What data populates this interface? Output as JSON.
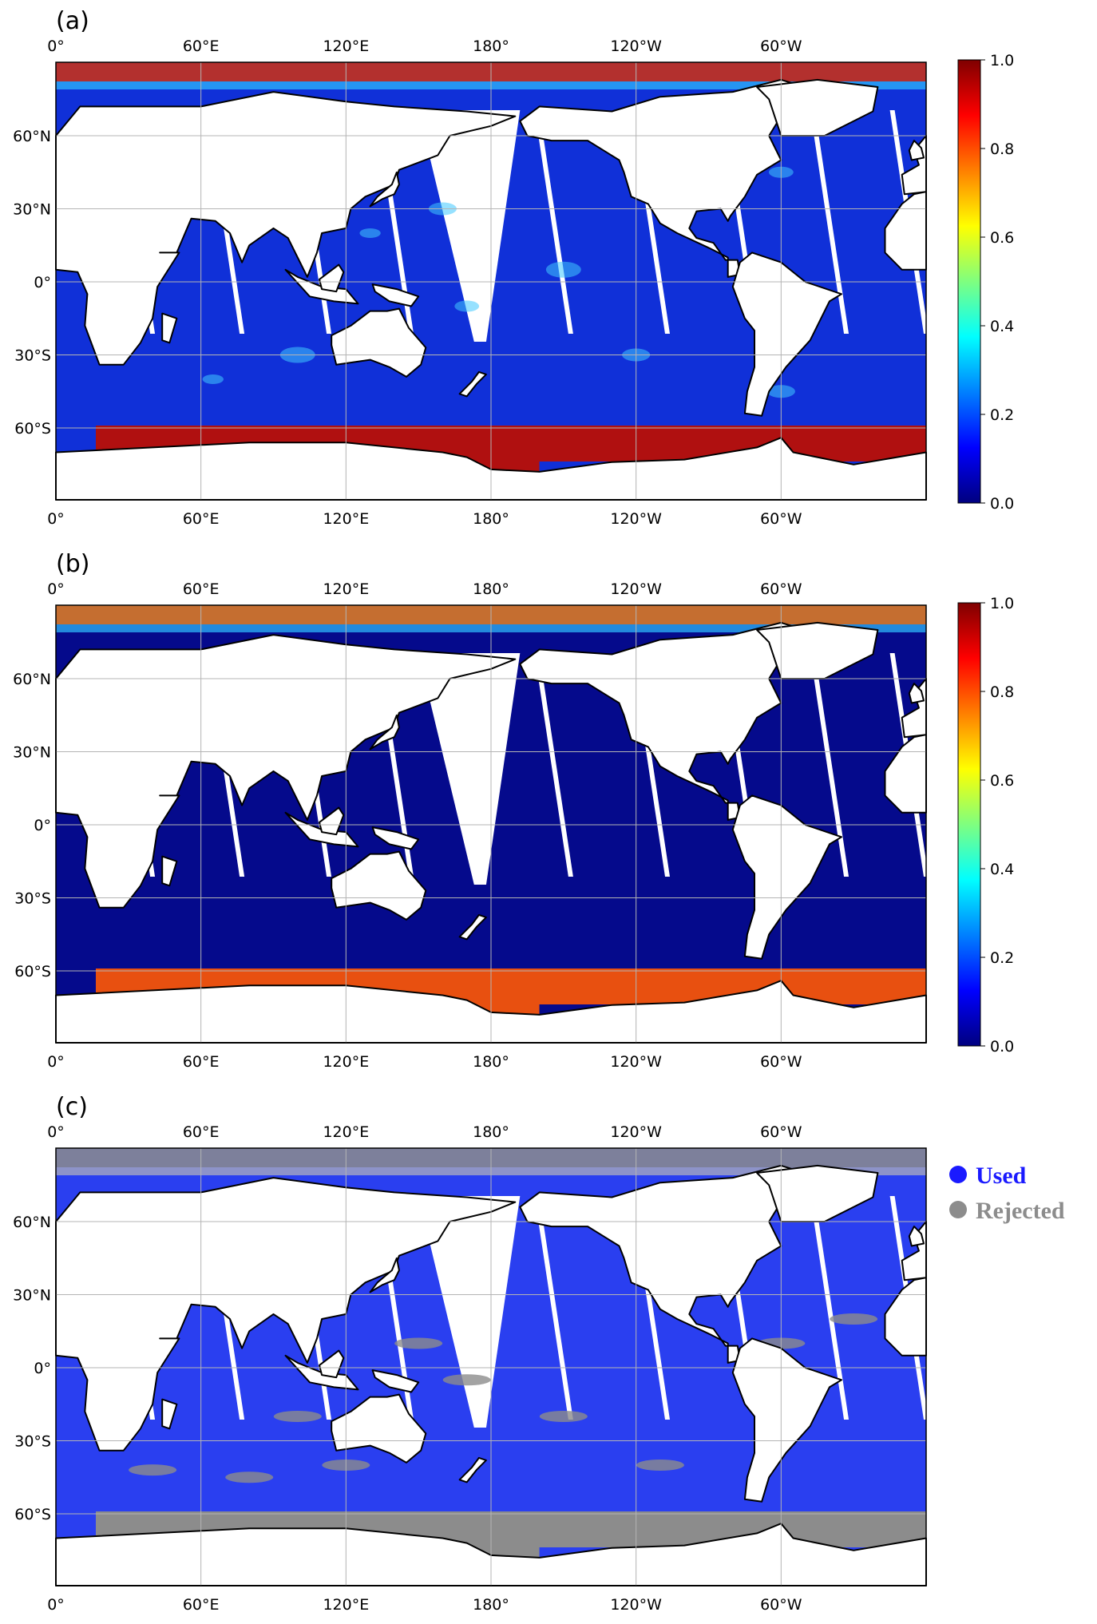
{
  "panels": [
    {
      "label": "(a)",
      "type": "colormap",
      "colorbar": {
        "ticks": [
          "1.0",
          "0.8",
          "0.6",
          "0.4",
          "0.2",
          "0.0"
        ]
      }
    },
    {
      "label": "(b)",
      "type": "colormap",
      "colorbar": {
        "ticks": [
          "1.0",
          "0.8",
          "0.6",
          "0.4",
          "0.2",
          "0.0"
        ]
      }
    },
    {
      "label": "(c)",
      "type": "categorical",
      "legend": [
        {
          "label": "Used",
          "color": "#1a1aff"
        },
        {
          "label": "Rejected",
          "color": "#8c8c8c"
        }
      ]
    }
  ],
  "axes": {
    "lon_ticks": [
      "0°",
      "60°E",
      "120°E",
      "180°",
      "120°W",
      "60°W"
    ],
    "lat_ticks": [
      "60°N",
      "30°N",
      "0°",
      "30°S",
      "60°S"
    ]
  },
  "colors": {
    "ocean_a": "#1030d8",
    "ocean_b": "#050a8c",
    "ocean_c": "#2a3ff0",
    "sea_ice": "#b01010",
    "sea_ice_b": "#e85010",
    "rejected": "#8c8c8c",
    "land": "#ffffff",
    "coast": "#000000"
  }
}
